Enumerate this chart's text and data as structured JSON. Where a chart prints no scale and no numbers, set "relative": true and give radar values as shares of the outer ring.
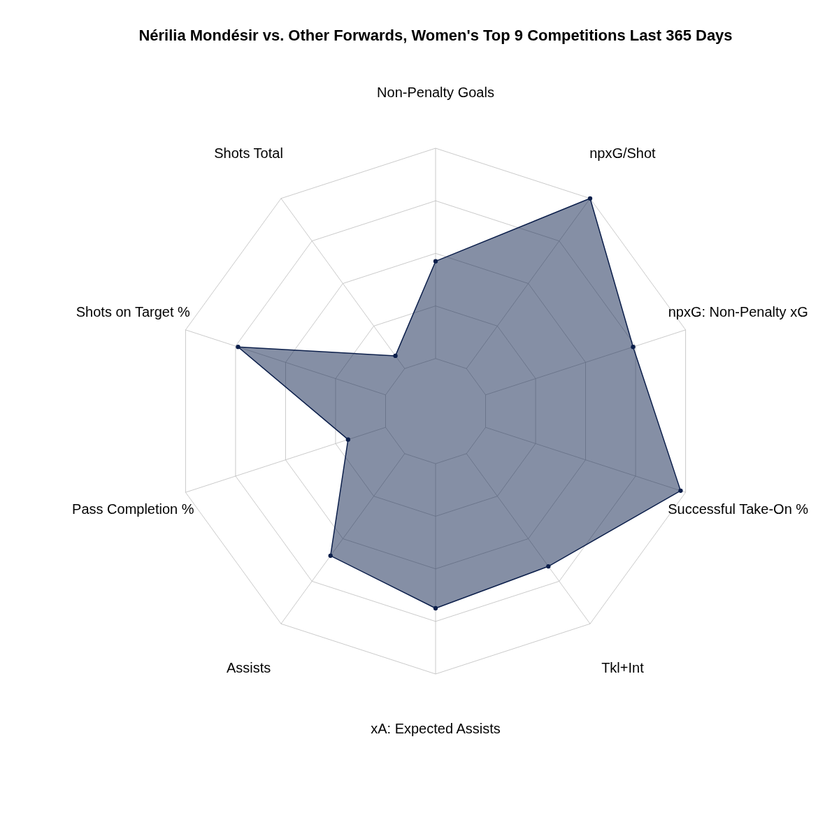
{
  "chart_data": {
    "type": "radar",
    "title": "Nérilia Mondésir vs. Other Forwards, Women's Top 9 Competitions Last 365 Days",
    "categories": [
      "Non-Penalty Goals",
      "npxG/Shot",
      "npxG: Non-Penalty xG",
      "Successful Take-On %",
      "Tkl+Int",
      "xA: Expected Assists",
      "Assists",
      "Pass Completion %",
      "Shots on Target %",
      "Shots Total"
    ],
    "relative": true,
    "grid": true,
    "marker": "circle",
    "series": [
      {
        "color": "#0c1f4b",
        "values": [
          0.57,
          1.0,
          0.79,
          0.98,
          0.73,
          0.75,
          0.68,
          0.35,
          0.79,
          0.26
        ]
      }
    ]
  }
}
